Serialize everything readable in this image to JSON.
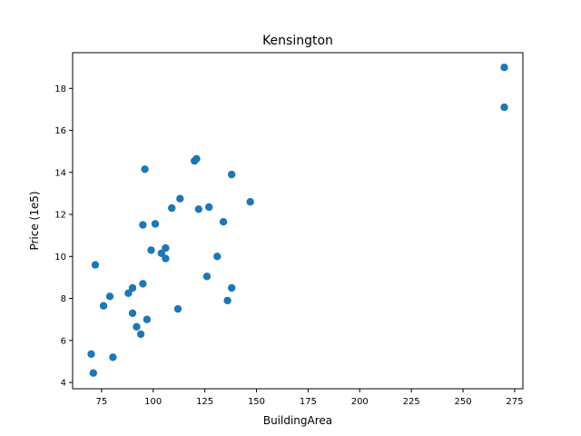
{
  "chart_data": {
    "type": "scatter",
    "title": "Kensington",
    "xlabel": "BuildingArea",
    "ylabel": "Price (1e5)",
    "xlim": [
      61,
      279
    ],
    "ylim": [
      3.7,
      19.7
    ],
    "xticks": [
      75,
      100,
      125,
      150,
      175,
      200,
      225,
      250,
      275
    ],
    "yticks": [
      4,
      6,
      8,
      10,
      12,
      14,
      16,
      18
    ],
    "grid": false,
    "legend": "none",
    "marker_color": "#1f77b4",
    "points": [
      {
        "x": 70,
        "y": 5.35
      },
      {
        "x": 71,
        "y": 4.45
      },
      {
        "x": 72,
        "y": 9.6
      },
      {
        "x": 76,
        "y": 7.65
      },
      {
        "x": 79,
        "y": 8.1
      },
      {
        "x": 80.5,
        "y": 5.2
      },
      {
        "x": 88,
        "y": 8.25
      },
      {
        "x": 90,
        "y": 8.5
      },
      {
        "x": 90,
        "y": 7.3
      },
      {
        "x": 92,
        "y": 6.65
      },
      {
        "x": 94,
        "y": 6.3
      },
      {
        "x": 95,
        "y": 8.7
      },
      {
        "x": 95,
        "y": 11.5
      },
      {
        "x": 96,
        "y": 14.15
      },
      {
        "x": 97,
        "y": 7.0
      },
      {
        "x": 99,
        "y": 10.3
      },
      {
        "x": 101,
        "y": 11.55
      },
      {
        "x": 104,
        "y": 10.15
      },
      {
        "x": 106,
        "y": 10.4
      },
      {
        "x": 106,
        "y": 9.9
      },
      {
        "x": 109,
        "y": 12.3
      },
      {
        "x": 112,
        "y": 7.5
      },
      {
        "x": 113,
        "y": 12.75
      },
      {
        "x": 120,
        "y": 14.55
      },
      {
        "x": 121,
        "y": 14.65
      },
      {
        "x": 122,
        "y": 12.25
      },
      {
        "x": 126,
        "y": 9.05
      },
      {
        "x": 127,
        "y": 12.35
      },
      {
        "x": 131,
        "y": 10.0
      },
      {
        "x": 134,
        "y": 11.65
      },
      {
        "x": 136,
        "y": 7.9
      },
      {
        "x": 138,
        "y": 8.5
      },
      {
        "x": 138,
        "y": 13.9
      },
      {
        "x": 147,
        "y": 12.6
      },
      {
        "x": 270,
        "y": 19.0
      },
      {
        "x": 270,
        "y": 17.1
      }
    ]
  }
}
